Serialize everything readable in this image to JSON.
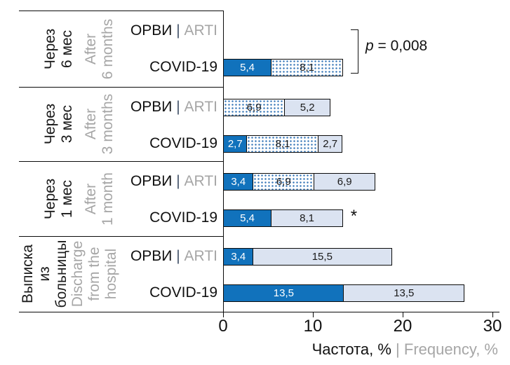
{
  "chart_data": {
    "type": "bar",
    "orientation": "horizontal-stacked",
    "xlabel": {
      "ru": "Частота, %",
      "sep": " | ",
      "en": "Frequency, %"
    },
    "xlim": [
      0,
      30
    ],
    "xticks": [
      "0",
      "10",
      "20",
      "30"
    ],
    "xtick_values": [
      0,
      10,
      20,
      30
    ],
    "grid": false,
    "legend": "none",
    "segment_styles": [
      {
        "id": "solid",
        "desc": "solid blue fill",
        "color": "#1172BC",
        "text_color": "#FFFFFF"
      },
      {
        "id": "dotted",
        "desc": "white with blue polka dots",
        "color": "#FFFFFF",
        "dot_color": "#3D7BBA",
        "text_color": "#1A1A1A"
      },
      {
        "id": "light",
        "desc": "light blue fill",
        "color": "#DBE3F1",
        "text_color": "#1A1A1A"
      }
    ],
    "groups": [
      {
        "label_ru": "Через\n6 мес",
        "label_en": "After\n6 months",
        "annotation": {
          "type": "bracket",
          "text_var": "p",
          "text_rest": " = 0,008"
        },
        "rows": [
          {
            "label_ru": "ОРВИ",
            "label_sep": " | ",
            "label_en": "ARTI",
            "segments": []
          },
          {
            "label": "COVID-19",
            "segments": [
              {
                "style": "solid",
                "value": 5.4,
                "text": "5,4"
              },
              {
                "style": "dotted",
                "value": 8.1,
                "text": "8,1"
              }
            ]
          }
        ]
      },
      {
        "label_ru": "Через\n3 мес",
        "label_en": "After\n3 months",
        "rows": [
          {
            "label_ru": "ОРВИ",
            "label_sep": " | ",
            "label_en": "ARTI",
            "segments": [
              {
                "style": "dotted",
                "value": 6.9,
                "text": "6,9"
              },
              {
                "style": "light",
                "value": 5.2,
                "text": "5,2"
              }
            ]
          },
          {
            "label": "COVID-19",
            "segments": [
              {
                "style": "solid",
                "value": 2.7,
                "text": "2,7"
              },
              {
                "style": "dotted",
                "value": 8.1,
                "text": "8,1"
              },
              {
                "style": "light",
                "value": 2.7,
                "text": "2,7"
              }
            ]
          }
        ]
      },
      {
        "label_ru": "Через\n1 мес",
        "label_en": "After\n1 month",
        "rows": [
          {
            "label_ru": "ОРВИ",
            "label_sep": " | ",
            "label_en": "ARTI",
            "segments": [
              {
                "style": "solid",
                "value": 3.4,
                "text": "3,4"
              },
              {
                "style": "dotted",
                "value": 6.9,
                "text": "6,9"
              },
              {
                "style": "light",
                "value": 6.9,
                "text": "6,9"
              }
            ]
          },
          {
            "label": "COVID-19",
            "annotation_star": "*",
            "segments": [
              {
                "style": "solid",
                "value": 5.4,
                "text": "5,4"
              },
              {
                "style": "light",
                "value": 8.1,
                "text": "8,1"
              }
            ]
          }
        ]
      },
      {
        "label_ru": "Выписка\nиз\nбольницы",
        "label_en": "Discharge\nfrom the\nhospital",
        "rows": [
          {
            "label_ru": "ОРВИ",
            "label_sep": " | ",
            "label_en": "ARTI",
            "segments": [
              {
                "style": "solid",
                "value": 3.4,
                "text": "3,4"
              },
              {
                "style": "light",
                "value": 15.5,
                "text": "15,5"
              }
            ]
          },
          {
            "label": "COVID-19",
            "segments": [
              {
                "style": "solid",
                "value": 13.5,
                "text": "13,5"
              },
              {
                "style": "light",
                "value": 13.5,
                "text": "13,5"
              }
            ]
          }
        ]
      }
    ]
  }
}
